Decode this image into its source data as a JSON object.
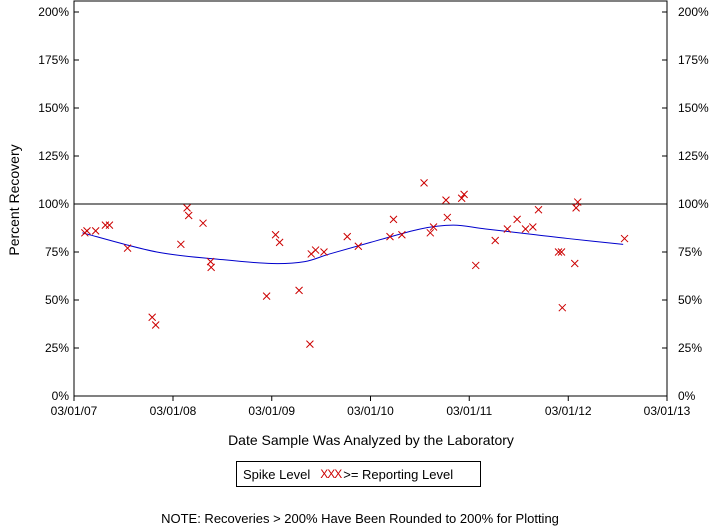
{
  "chart_data": {
    "type": "scatter",
    "xlabel": "Date Sample Was Analyzed by the Laboratory",
    "ylabel": "Percent Recovery",
    "x_ticks": [
      "03/01/07",
      "03/01/08",
      "03/01/09",
      "03/01/10",
      "03/01/11",
      "03/01/12",
      "03/01/13"
    ],
    "xlim": [
      "03/01/07",
      "03/01/13"
    ],
    "y_ticks": [
      "0%",
      "25%",
      "50%",
      "75%",
      "100%",
      "125%",
      "150%",
      "175%",
      "200%"
    ],
    "ylim": [
      0,
      200
    ],
    "reference_line": {
      "y": 100
    },
    "legend": {
      "spike_label": "Spike Level",
      "marker_text": "XXX",
      "series_label": ">= Reporting Level",
      "placement": "bottom-center"
    },
    "series": [
      {
        "name": ">= Reporting Level",
        "marker": "x",
        "color": "#cc0000",
        "points": [
          {
            "x": "2007-04-10",
            "y": 85
          },
          {
            "x": "2007-04-18",
            "y": 86
          },
          {
            "x": "2007-05-20",
            "y": 86
          },
          {
            "x": "2007-06-25",
            "y": 89
          },
          {
            "x": "2007-07-10",
            "y": 89
          },
          {
            "x": "2007-09-15",
            "y": 77
          },
          {
            "x": "2007-12-15",
            "y": 41
          },
          {
            "x": "2007-12-28",
            "y": 37
          },
          {
            "x": "2008-03-30",
            "y": 79
          },
          {
            "x": "2008-04-22",
            "y": 98
          },
          {
            "x": "2008-04-28",
            "y": 94
          },
          {
            "x": "2008-06-20",
            "y": 90
          },
          {
            "x": "2008-07-18",
            "y": 70
          },
          {
            "x": "2008-07-20",
            "y": 67
          },
          {
            "x": "2009-02-10",
            "y": 52
          },
          {
            "x": "2009-03-15",
            "y": 84
          },
          {
            "x": "2009-03-30",
            "y": 80
          },
          {
            "x": "2009-06-10",
            "y": 55
          },
          {
            "x": "2009-07-20",
            "y": 27
          },
          {
            "x": "2009-07-25",
            "y": 74
          },
          {
            "x": "2009-08-10",
            "y": 76
          },
          {
            "x": "2009-09-10",
            "y": 75
          },
          {
            "x": "2009-12-05",
            "y": 83
          },
          {
            "x": "2010-01-15",
            "y": 78
          },
          {
            "x": "2010-05-12",
            "y": 83
          },
          {
            "x": "2010-05-25",
            "y": 92
          },
          {
            "x": "2010-06-25",
            "y": 84
          },
          {
            "x": "2010-09-15",
            "y": 111
          },
          {
            "x": "2010-10-08",
            "y": 85
          },
          {
            "x": "2010-10-20",
            "y": 88
          },
          {
            "x": "2010-12-05",
            "y": 102
          },
          {
            "x": "2010-12-10",
            "y": 93
          },
          {
            "x": "2011-02-01",
            "y": 103
          },
          {
            "x": "2011-02-10",
            "y": 105
          },
          {
            "x": "2011-03-25",
            "y": 68
          },
          {
            "x": "2011-06-05",
            "y": 81
          },
          {
            "x": "2011-07-20",
            "y": 87
          },
          {
            "x": "2011-08-25",
            "y": 92
          },
          {
            "x": "2011-09-25",
            "y": 87
          },
          {
            "x": "2011-10-22",
            "y": 88
          },
          {
            "x": "2011-11-12",
            "y": 97
          },
          {
            "x": "2012-01-25",
            "y": 75
          },
          {
            "x": "2012-02-05",
            "y": 75
          },
          {
            "x": "2012-02-08",
            "y": 46
          },
          {
            "x": "2012-03-25",
            "y": 69
          },
          {
            "x": "2012-03-30",
            "y": 98
          },
          {
            "x": "2012-04-05",
            "y": 101
          },
          {
            "x": "2012-09-25",
            "y": 82
          }
        ]
      },
      {
        "name": "trend",
        "type": "line",
        "color": "#0000cc",
        "points": [
          {
            "x": "2007-04-01",
            "y": 85
          },
          {
            "x": "2008-01-01",
            "y": 75
          },
          {
            "x": "2008-09-01",
            "y": 71
          },
          {
            "x": "2009-03-01",
            "y": 69
          },
          {
            "x": "2009-07-01",
            "y": 70
          },
          {
            "x": "2009-10-01",
            "y": 74
          },
          {
            "x": "2010-03-01",
            "y": 80
          },
          {
            "x": "2010-09-01",
            "y": 87
          },
          {
            "x": "2011-01-01",
            "y": 89
          },
          {
            "x": "2011-05-01",
            "y": 87
          },
          {
            "x": "2011-11-01",
            "y": 84
          },
          {
            "x": "2012-03-01",
            "y": 82
          },
          {
            "x": "2012-09-20",
            "y": 79
          }
        ]
      }
    ],
    "note": "NOTE: Recoveries > 200% Have Been Rounded to 200% for Plotting"
  }
}
